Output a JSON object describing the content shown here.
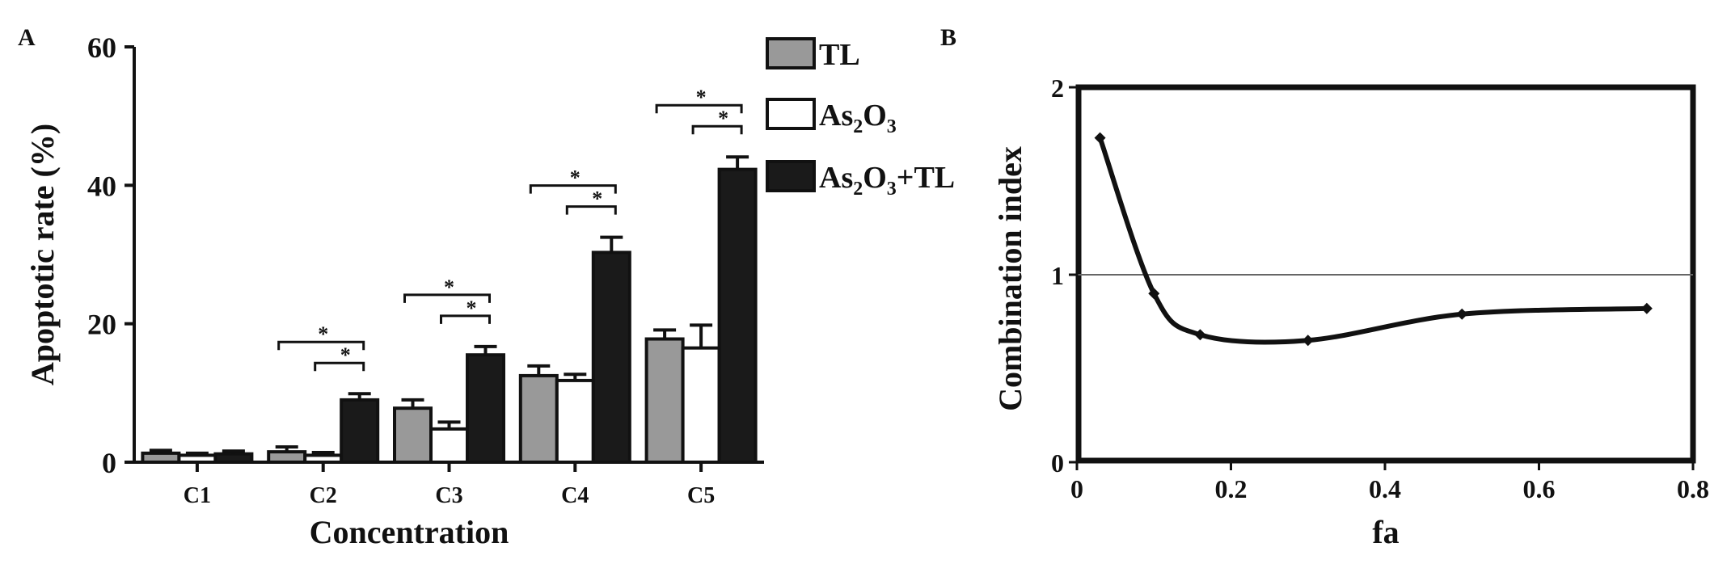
{
  "panels": {
    "a": {
      "label": "A"
    },
    "b": {
      "label": "B"
    }
  },
  "chart_data": [
    {
      "type": "bar",
      "panel": "A",
      "xlabel": "Concentration",
      "ylabel": "Apoptotic rate (%)",
      "ylim": [
        0,
        60
      ],
      "yticks": [
        "0",
        "20",
        "40",
        "60"
      ],
      "categories": [
        "C1",
        "C2",
        "C3",
        "C4",
        "C5"
      ],
      "legend_position": "top-right",
      "series": [
        {
          "name": "TL",
          "sub": "",
          "tail": "",
          "color": "#999999",
          "values": [
            1.3,
            1.5,
            7.8,
            12.5,
            17.8
          ],
          "errors": [
            0.4,
            0.7,
            1.2,
            1.4,
            1.3
          ]
        },
        {
          "name": "As",
          "sub": "2",
          "mid": "O",
          "sub2": "3",
          "tail": "",
          "color": "#ffffff",
          "values": [
            1.0,
            1.0,
            4.8,
            11.8,
            16.5
          ],
          "errors": [
            0.3,
            0.4,
            1.0,
            0.9,
            3.3
          ]
        },
        {
          "name": "As",
          "sub": "2",
          "mid": "O",
          "sub2": "3",
          "tail": "+TL",
          "color": "#1a1a1a",
          "values": [
            1.2,
            9.0,
            15.5,
            30.3,
            42.3
          ],
          "errors": [
            0.4,
            0.9,
            1.2,
            2.2,
            1.8
          ]
        }
      ],
      "significance": [
        {
          "category_index": 1,
          "marks": [
            "*",
            "*"
          ]
        },
        {
          "category_index": 2,
          "marks": [
            "*",
            "*"
          ]
        },
        {
          "category_index": 3,
          "marks": [
            "*",
            "*"
          ]
        },
        {
          "category_index": 4,
          "marks": [
            "*",
            "*"
          ]
        }
      ]
    },
    {
      "type": "line",
      "panel": "B",
      "xlabel": "fa",
      "ylabel": "Combination index",
      "xlim": [
        0,
        0.8
      ],
      "ylim": [
        0,
        2
      ],
      "xticks": [
        "0",
        "0.2",
        "0.4",
        "0.6",
        "0.8"
      ],
      "yticks": [
        "0",
        "1",
        "2"
      ],
      "reference_line_y": 1,
      "series": [
        {
          "x": [
            0.03,
            0.1,
            0.16,
            0.3,
            0.5,
            0.74
          ],
          "y": [
            1.73,
            0.9,
            0.68,
            0.65,
            0.79,
            0.82
          ]
        }
      ]
    }
  ]
}
